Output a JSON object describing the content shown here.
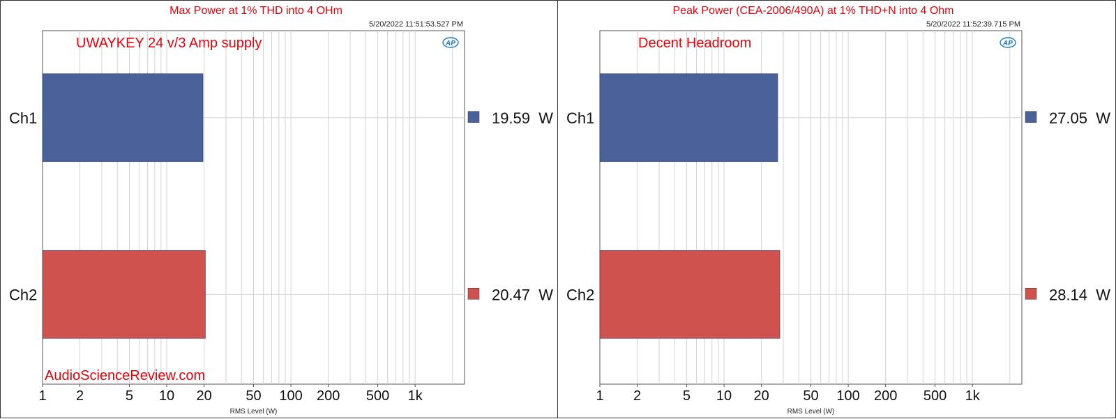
{
  "colors": {
    "ch1": "#4a6199",
    "ch2": "#d0524f",
    "title": "#e8000b",
    "annotation": "#e8000b",
    "grid": "#d3d3d3"
  },
  "chart_data": [
    {
      "type": "bar",
      "orientation": "horizontal",
      "title": "Max Power at 1% THD into 4 OHm",
      "timestamp": "5/20/2022 11:51:53.527 PM",
      "annotation": "UWAYKEY 24 v/3 Amp supply",
      "watermark": "AudioScienceReview.com",
      "xlabel": "RMS Level (W)",
      "xscale": "log",
      "xlim": [
        1,
        2500
      ],
      "xticks": [
        1,
        2,
        5,
        10,
        20,
        50,
        100,
        200,
        500,
        1000
      ],
      "xtick_labels": [
        "1",
        "2",
        "5",
        "10",
        "20",
        "50",
        "100",
        "200",
        "500",
        "1k"
      ],
      "categories": [
        "Ch1",
        "Ch2"
      ],
      "values": [
        19.59,
        20.47
      ],
      "value_labels": [
        "19.59  W",
        "20.47  W"
      ],
      "legend_colors": [
        "#4a6199",
        "#d0524f"
      ],
      "grid": true,
      "logo": "AP"
    },
    {
      "type": "bar",
      "orientation": "horizontal",
      "title": "Peak Power (CEA-2006/490A) at 1% THD+N into 4 Ohm",
      "timestamp": "5/20/2022 11:52:39.715 PM",
      "annotation": "Decent Headroom",
      "watermark": "",
      "xlabel": "RMS Level (W)",
      "xscale": "log",
      "xlim": [
        1,
        2500
      ],
      "xticks": [
        1,
        2,
        5,
        10,
        20,
        50,
        100,
        200,
        500,
        1000
      ],
      "xtick_labels": [
        "1",
        "2",
        "5",
        "10",
        "20",
        "50",
        "100",
        "200",
        "500",
        "1k"
      ],
      "categories": [
        "Ch1",
        "Ch2"
      ],
      "values": [
        27.05,
        28.14
      ],
      "value_labels": [
        "27.05  W",
        "28.14  W"
      ],
      "legend_colors": [
        "#4a6199",
        "#d0524f"
      ],
      "grid": true,
      "logo": "AP"
    }
  ]
}
